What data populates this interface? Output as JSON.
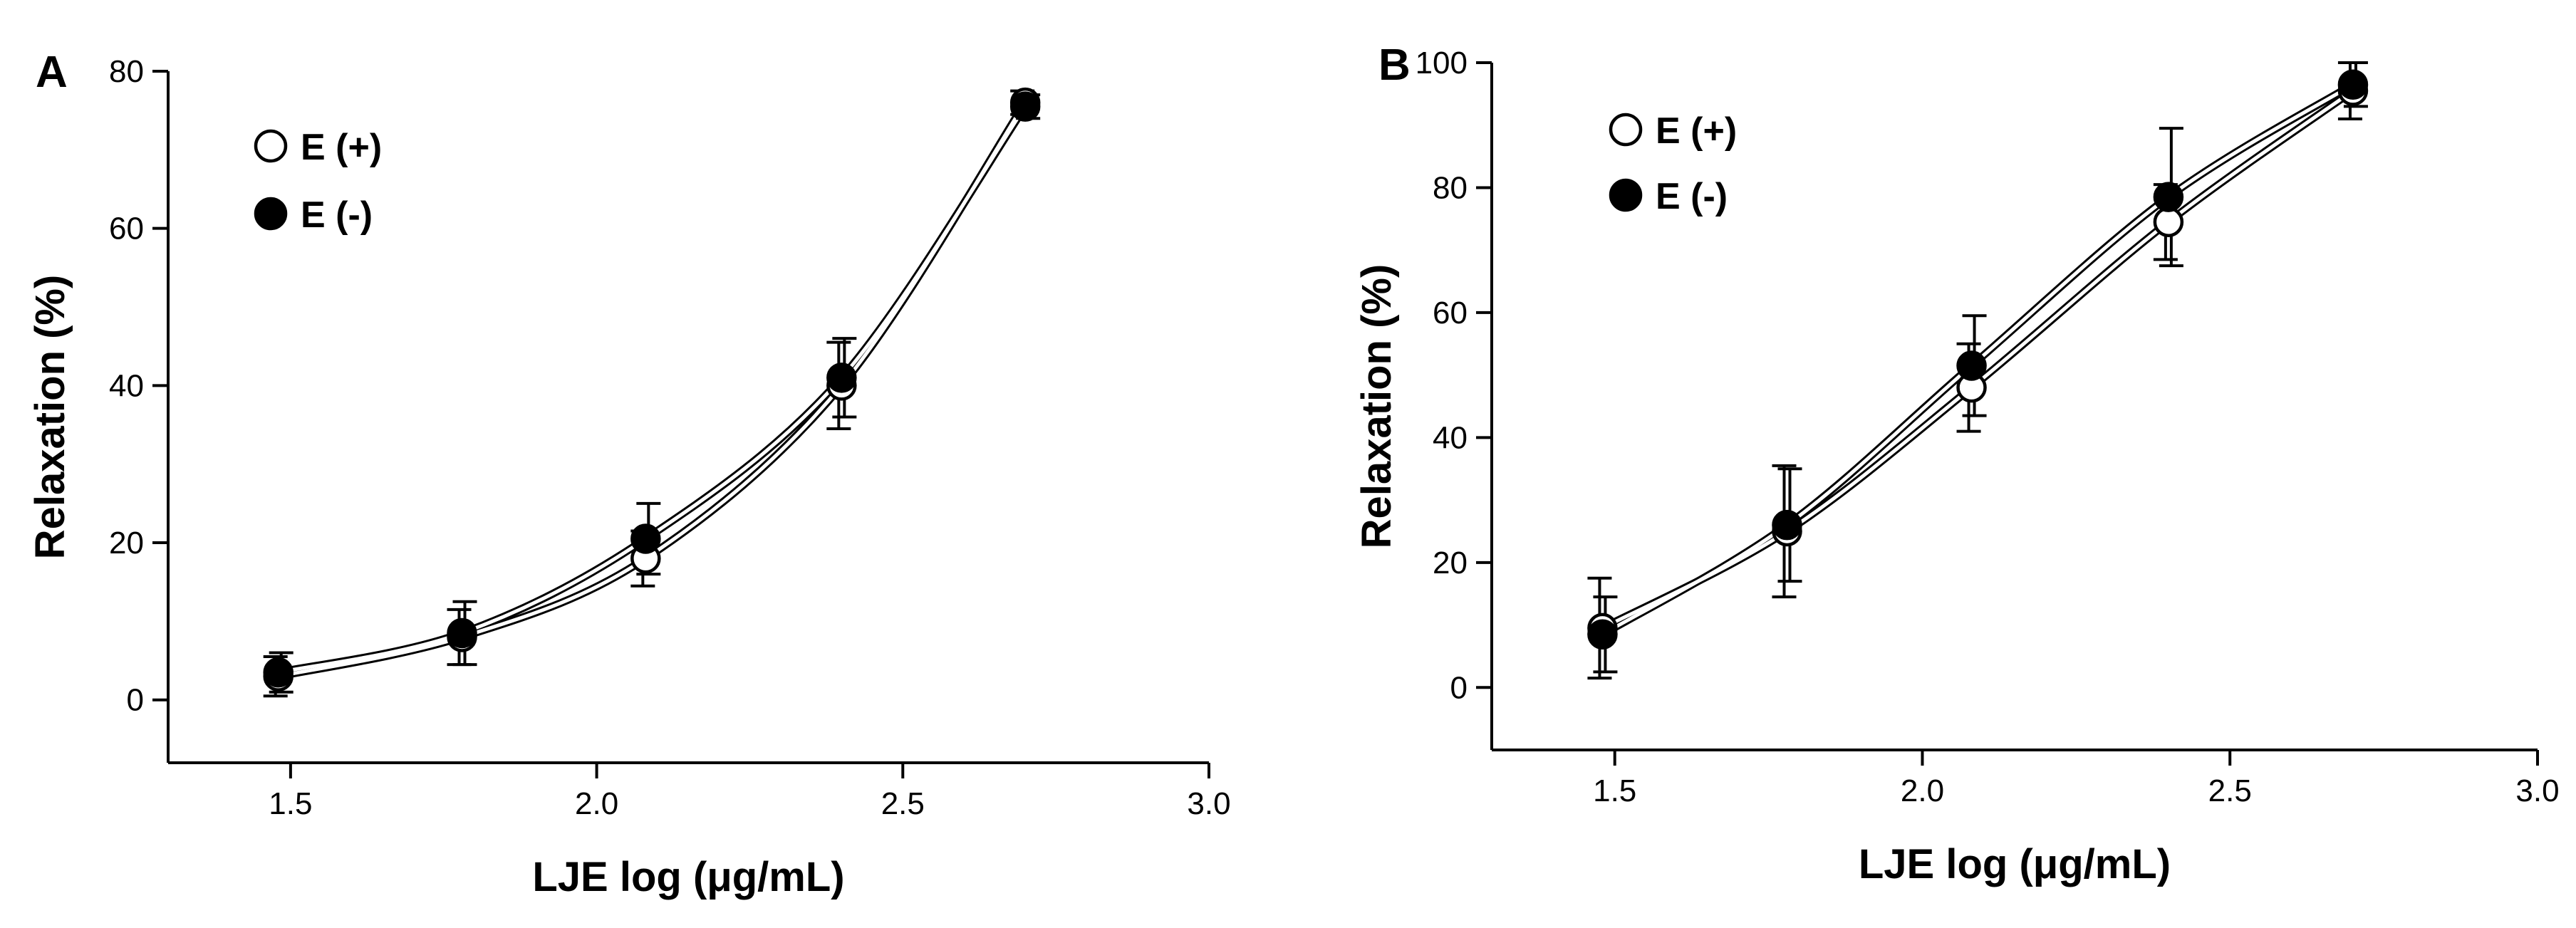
{
  "chart_data": [
    {
      "type": "line",
      "panel_label": "A",
      "xlabel": "LJE log (μg/mL)",
      "ylabel": "Relaxation (%)",
      "xlim": [
        1.3,
        3.0
      ],
      "ylim": [
        -8,
        80
      ],
      "xticks": [
        1.5,
        2.0,
        2.5,
        3.0
      ],
      "xtick_labels": [
        "1.5",
        "2.0",
        "2.5",
        "3.0"
      ],
      "yticks": [
        0,
        20,
        40,
        60,
        80
      ],
      "ytick_labels": [
        "0",
        "20",
        "40",
        "60",
        "80"
      ],
      "legend_position": "top-left",
      "series": [
        {
          "name": "E (+)",
          "marker": "open-circle",
          "x": [
            1.48,
            1.78,
            2.08,
            2.4,
            2.7
          ],
          "values": [
            3,
            8,
            18,
            40,
            76
          ],
          "err": [
            2.5,
            3.5,
            3.5,
            5.5,
            1.5
          ]
        },
        {
          "name": "E (-)",
          "marker": "filled-circle",
          "x": [
            1.48,
            1.78,
            2.08,
            2.4,
            2.7
          ],
          "values": [
            3.5,
            8.5,
            20.5,
            41,
            75.5
          ],
          "err": [
            2.5,
            4,
            4.5,
            5,
            1.5
          ]
        }
      ]
    },
    {
      "type": "line",
      "panel_label": "B",
      "xlabel": "LJE log (μg/mL)",
      "ylabel": "Relaxation (%)",
      "xlim": [
        1.3,
        3.0
      ],
      "ylim": [
        -10,
        100
      ],
      "xticks": [
        1.5,
        2.0,
        2.5,
        3.0
      ],
      "xtick_labels": [
        "1.5",
        "2.0",
        "2.5",
        "3.0"
      ],
      "yticks": [
        0,
        20,
        40,
        60,
        80,
        100
      ],
      "ytick_labels": [
        "0",
        "20",
        "40",
        "60",
        "80",
        "100"
      ],
      "legend_position": "top-left",
      "series": [
        {
          "name": "E (+)",
          "marker": "open-circle",
          "x": [
            1.48,
            1.78,
            2.08,
            2.4,
            2.7
          ],
          "values": [
            9.5,
            25,
            48,
            74.5,
            95.5
          ],
          "err": [
            8,
            10.5,
            7,
            6,
            4.5
          ]
        },
        {
          "name": "E (-)",
          "marker": "filled-circle",
          "x": [
            1.48,
            1.78,
            2.08,
            2.4,
            2.7
          ],
          "values": [
            8.5,
            26,
            51.5,
            78.5,
            96.5
          ],
          "err": [
            6,
            9,
            8,
            11,
            3.5
          ]
        }
      ]
    }
  ]
}
